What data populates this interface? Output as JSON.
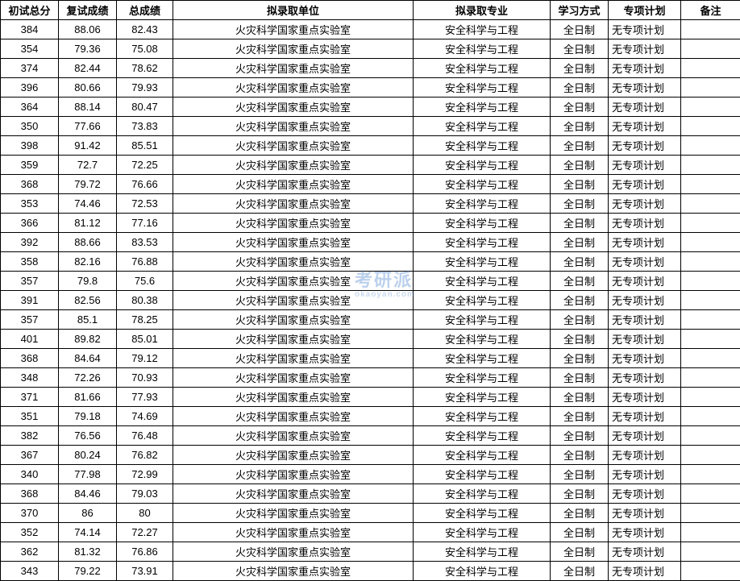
{
  "watermark": {
    "main": "考研派",
    "sub": "okaoyan.com"
  },
  "columns": [
    {
      "key": "score1",
      "label": "初试总分",
      "class": "col-score1"
    },
    {
      "key": "score2",
      "label": "复试成绩",
      "class": "col-score2"
    },
    {
      "key": "score3",
      "label": "总成绩",
      "class": "col-score3"
    },
    {
      "key": "unit",
      "label": "拟录取单位",
      "class": "col-unit"
    },
    {
      "key": "major",
      "label": "拟录取专业",
      "class": "col-major"
    },
    {
      "key": "mode",
      "label": "学习方式",
      "class": "col-mode"
    },
    {
      "key": "plan",
      "label": "专项计划",
      "class": "col-plan"
    },
    {
      "key": "note",
      "label": "备注",
      "class": "col-note"
    }
  ],
  "defaults": {
    "unit": "火灾科学国家重点实验室",
    "major": "安全科学与工程",
    "mode": "全日制",
    "plan": "无专项计划",
    "note": ""
  },
  "rows": [
    {
      "score1": "384",
      "score2": "88.06",
      "score3": "82.43"
    },
    {
      "score1": "354",
      "score2": "79.36",
      "score3": "75.08"
    },
    {
      "score1": "374",
      "score2": "82.44",
      "score3": "78.62"
    },
    {
      "score1": "396",
      "score2": "80.66",
      "score3": "79.93"
    },
    {
      "score1": "364",
      "score2": "88.14",
      "score3": "80.47"
    },
    {
      "score1": "350",
      "score2": "77.66",
      "score3": "73.83"
    },
    {
      "score1": "398",
      "score2": "91.42",
      "score3": "85.51"
    },
    {
      "score1": "359",
      "score2": "72.7",
      "score3": "72.25"
    },
    {
      "score1": "368",
      "score2": "79.72",
      "score3": "76.66"
    },
    {
      "score1": "353",
      "score2": "74.46",
      "score3": "72.53"
    },
    {
      "score1": "366",
      "score2": "81.12",
      "score3": "77.16"
    },
    {
      "score1": "392",
      "score2": "88.66",
      "score3": "83.53"
    },
    {
      "score1": "358",
      "score2": "82.16",
      "score3": "76.88"
    },
    {
      "score1": "357",
      "score2": "79.8",
      "score3": "75.6"
    },
    {
      "score1": "391",
      "score2": "82.56",
      "score3": "80.38"
    },
    {
      "score1": "357",
      "score2": "85.1",
      "score3": "78.25"
    },
    {
      "score1": "401",
      "score2": "89.82",
      "score3": "85.01"
    },
    {
      "score1": "368",
      "score2": "84.64",
      "score3": "79.12"
    },
    {
      "score1": "348",
      "score2": "72.26",
      "score3": "70.93"
    },
    {
      "score1": "371",
      "score2": "81.66",
      "score3": "77.93"
    },
    {
      "score1": "351",
      "score2": "79.18",
      "score3": "74.69"
    },
    {
      "score1": "382",
      "score2": "76.56",
      "score3": "76.48"
    },
    {
      "score1": "367",
      "score2": "80.24",
      "score3": "76.82"
    },
    {
      "score1": "340",
      "score2": "77.98",
      "score3": "72.99"
    },
    {
      "score1": "368",
      "score2": "84.46",
      "score3": "79.03"
    },
    {
      "score1": "370",
      "score2": "86",
      "score3": "80"
    },
    {
      "score1": "352",
      "score2": "74.14",
      "score3": "72.27"
    },
    {
      "score1": "362",
      "score2": "81.32",
      "score3": "76.86"
    },
    {
      "score1": "343",
      "score2": "79.22",
      "score3": "73.91"
    }
  ]
}
